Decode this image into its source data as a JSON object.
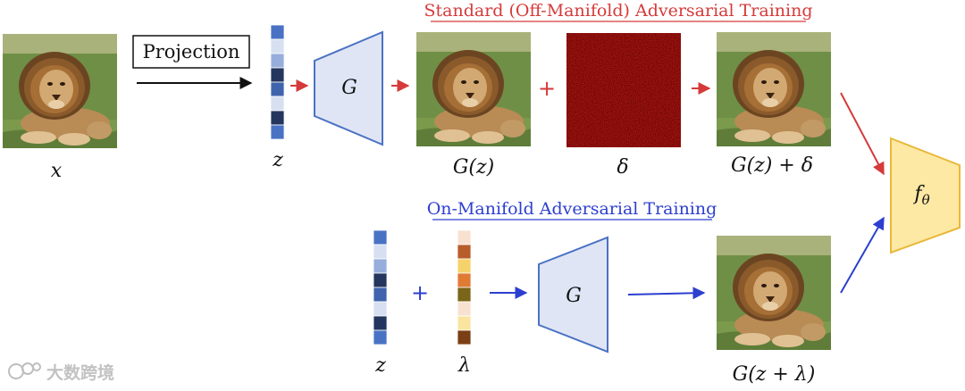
{
  "titles": {
    "off_manifold": "Standard (Off-Manifold) Adversarial Training",
    "on_manifold": "On-Manifold Adversarial Training"
  },
  "labels": {
    "projection": "Projection",
    "x": "x",
    "z_top": "z",
    "G_top": "G",
    "Gz": "G(z)",
    "delta": "δ",
    "plus": "+",
    "Gz_plus_delta": "G(z) + δ",
    "f_theta_base": "f",
    "f_theta_sub": "θ",
    "z_bottom": "z",
    "lambda": "λ",
    "G_bottom": "G",
    "Gz_plus_lambda": "G(z + λ)"
  },
  "watermark": "大数跨境",
  "colors": {
    "off_manifold_accent": "#d63a3a",
    "on_manifold_accent": "#2c3fcf",
    "generator_fill": "#dfe5f4",
    "generator_stroke": "#4a72c4",
    "classifier_fill": "#fde8a4",
    "classifier_stroke": "#e8b93a",
    "noise_base": "#a3130f"
  },
  "latent_vector_top": [
    "#4a72c4",
    "#d7e0f1",
    "#97aedc",
    "#24365e",
    "#3f64ad",
    "#d7e0f1",
    "#24365e",
    "#4a72c4"
  ],
  "latent_vector_bottom": [
    "#4a72c4",
    "#d7e0f1",
    "#97aedc",
    "#24365e",
    "#3f64ad",
    "#d7e0f1",
    "#24365e",
    "#4a72c4"
  ],
  "perturbation_vector": [
    "#f9e1d2",
    "#b85d2a",
    "#f5d26a",
    "#e07b36",
    "#7a6518",
    "#f9e1d2",
    "#f9e5a0",
    "#7a3f14"
  ]
}
